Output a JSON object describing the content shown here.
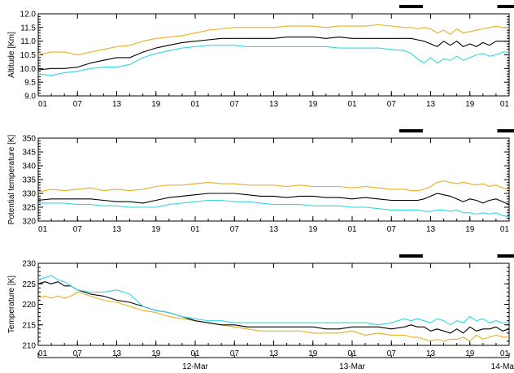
{
  "colors": {
    "upper": "#e8b020",
    "mid": "#000000",
    "lower": "#30d8e0",
    "axis": "#000000"
  },
  "x_tick_labels": [
    "01",
    "07",
    "13",
    "19",
    "01",
    "07",
    "13",
    "19",
    "01",
    "07",
    "13",
    "19",
    "01"
  ],
  "date_labels": [
    "12-Mar",
    "13-Mar",
    "14-Ma"
  ],
  "chart_data": [
    {
      "type": "line",
      "ylabel": "Altitude [Km]",
      "ylim": [
        9.0,
        12.0
      ],
      "yticks": [
        "9.0",
        "9.5",
        "10.0",
        "10.5",
        "11.0",
        "11.5",
        "12.0"
      ],
      "xlim": [
        0,
        72
      ],
      "bars": [
        [
          18.4,
          19.6
        ],
        [
          23.4,
          24.6
        ]
      ],
      "series": [
        {
          "color": "upper",
          "x": [
            0,
            2,
            4,
            6,
            8,
            10,
            12,
            14,
            16,
            18,
            20,
            22,
            24,
            26,
            28,
            30,
            32,
            34,
            36,
            38,
            40,
            42,
            44,
            46,
            48,
            50,
            52,
            54,
            56,
            57,
            58,
            59,
            60,
            61,
            62,
            63,
            64,
            65,
            66,
            67,
            68,
            69,
            70,
            71,
            72
          ],
          "y": [
            10.5,
            10.6,
            10.6,
            10.5,
            10.6,
            10.7,
            10.8,
            10.85,
            11.0,
            11.1,
            11.15,
            11.2,
            11.3,
            11.4,
            11.45,
            11.5,
            11.5,
            11.5,
            11.5,
            11.55,
            11.55,
            11.55,
            11.5,
            11.55,
            11.55,
            11.55,
            11.6,
            11.55,
            11.5,
            11.5,
            11.45,
            11.5,
            11.45,
            11.3,
            11.4,
            11.25,
            11.45,
            11.3,
            11.35,
            11.4,
            11.45,
            11.5,
            11.55,
            11.5,
            11.5
          ]
        },
        {
          "color": "mid",
          "x": [
            0,
            2,
            4,
            6,
            8,
            10,
            12,
            14,
            16,
            18,
            20,
            22,
            24,
            26,
            28,
            30,
            32,
            34,
            36,
            38,
            40,
            42,
            44,
            46,
            48,
            50,
            52,
            54,
            56,
            57,
            58,
            59,
            60,
            61,
            62,
            63,
            64,
            65,
            66,
            67,
            68,
            69,
            70,
            71,
            72
          ],
          "y": [
            9.95,
            10.0,
            10.0,
            10.05,
            10.2,
            10.3,
            10.4,
            10.4,
            10.6,
            10.75,
            10.85,
            10.95,
            11.0,
            11.05,
            11.1,
            11.1,
            11.1,
            11.1,
            11.1,
            11.15,
            11.15,
            11.15,
            11.1,
            11.15,
            11.1,
            11.1,
            11.1,
            11.1,
            11.1,
            11.1,
            11.05,
            11.0,
            10.9,
            10.8,
            11.0,
            10.85,
            11.0,
            10.8,
            10.9,
            10.8,
            10.95,
            10.85,
            11.0,
            11.0,
            11.0
          ]
        },
        {
          "color": "lower",
          "x": [
            0,
            2,
            4,
            6,
            8,
            10,
            12,
            14,
            16,
            18,
            20,
            22,
            24,
            26,
            28,
            30,
            32,
            34,
            36,
            38,
            40,
            42,
            44,
            46,
            48,
            50,
            52,
            54,
            56,
            57,
            58,
            59,
            60,
            61,
            62,
            63,
            64,
            65,
            66,
            67,
            68,
            69,
            70,
            71,
            72
          ],
          "y": [
            9.8,
            9.75,
            9.85,
            9.9,
            10.0,
            10.05,
            10.05,
            10.15,
            10.4,
            10.55,
            10.65,
            10.75,
            10.8,
            10.85,
            10.85,
            10.85,
            10.8,
            10.8,
            10.8,
            10.8,
            10.8,
            10.8,
            10.8,
            10.75,
            10.75,
            10.75,
            10.75,
            10.7,
            10.65,
            10.55,
            10.35,
            10.2,
            10.4,
            10.2,
            10.35,
            10.3,
            10.45,
            10.3,
            10.4,
            10.5,
            10.55,
            10.45,
            10.5,
            10.6,
            10.6
          ]
        }
      ]
    },
    {
      "type": "line",
      "ylabel": "Potential temperature [K]",
      "ylim": [
        320,
        350
      ],
      "yticks": [
        "320",
        "325",
        "330",
        "335",
        "340",
        "345",
        "350"
      ],
      "xlim": [
        0,
        72
      ],
      "bars": [
        [
          18.4,
          19.6
        ],
        [
          23.4,
          24.6
        ]
      ],
      "series": [
        {
          "color": "upper",
          "x": [
            0,
            2,
            4,
            6,
            8,
            10,
            12,
            14,
            16,
            18,
            20,
            22,
            24,
            26,
            28,
            30,
            32,
            34,
            36,
            38,
            40,
            42,
            44,
            46,
            48,
            50,
            52,
            54,
            56,
            57,
            58,
            59,
            60,
            61,
            62,
            63,
            64,
            65,
            66,
            67,
            68,
            69,
            70,
            71,
            72
          ],
          "y": [
            330.5,
            331.5,
            331.0,
            331.5,
            332.0,
            331.0,
            331.5,
            331.0,
            331.5,
            332.5,
            333.0,
            333.0,
            333.5,
            334.0,
            333.5,
            333.5,
            333.0,
            333.0,
            333.0,
            332.5,
            333.0,
            332.5,
            332.5,
            332.5,
            332.0,
            332.5,
            332.0,
            331.5,
            331.5,
            331.0,
            331.0,
            331.5,
            332.5,
            334.0,
            334.5,
            334.0,
            333.5,
            334.0,
            333.5,
            333.0,
            333.5,
            332.5,
            333.0,
            332.0,
            331.5
          ]
        },
        {
          "color": "mid",
          "x": [
            0,
            2,
            4,
            6,
            8,
            10,
            12,
            14,
            16,
            18,
            20,
            22,
            24,
            26,
            28,
            30,
            32,
            34,
            36,
            38,
            40,
            42,
            44,
            46,
            48,
            50,
            52,
            54,
            56,
            57,
            58,
            59,
            60,
            61,
            62,
            63,
            64,
            65,
            66,
            67,
            68,
            69,
            70,
            71,
            72
          ],
          "y": [
            327.5,
            328.0,
            328.0,
            328.0,
            328.0,
            327.5,
            327.0,
            327.0,
            326.5,
            327.5,
            328.5,
            329.0,
            329.5,
            330.0,
            330.0,
            330.0,
            329.5,
            329.0,
            329.0,
            328.5,
            329.0,
            329.0,
            328.5,
            328.5,
            328.0,
            328.5,
            328.0,
            327.5,
            327.5,
            327.5,
            327.5,
            328.0,
            329.0,
            330.0,
            329.5,
            329.0,
            328.0,
            327.0,
            328.0,
            327.5,
            326.5,
            327.5,
            328.0,
            327.0,
            326.0
          ]
        },
        {
          "color": "lower",
          "x": [
            0,
            2,
            4,
            6,
            8,
            10,
            12,
            14,
            16,
            18,
            20,
            22,
            24,
            26,
            28,
            30,
            32,
            34,
            36,
            38,
            40,
            42,
            44,
            46,
            48,
            50,
            52,
            54,
            56,
            57,
            58,
            59,
            60,
            61,
            62,
            63,
            64,
            65,
            66,
            67,
            68,
            69,
            70,
            71,
            72
          ],
          "y": [
            326.5,
            326.5,
            326.5,
            326.0,
            326.0,
            325.5,
            325.5,
            325.0,
            325.0,
            325.0,
            326.0,
            326.5,
            327.0,
            327.5,
            327.5,
            327.0,
            327.0,
            326.5,
            326.0,
            326.0,
            326.0,
            325.5,
            325.5,
            325.5,
            325.0,
            325.0,
            324.5,
            324.0,
            324.0,
            324.0,
            324.0,
            323.5,
            323.5,
            324.0,
            324.0,
            323.5,
            324.0,
            323.0,
            323.0,
            322.5,
            323.0,
            322.5,
            323.0,
            322.0,
            321.5
          ]
        }
      ]
    },
    {
      "type": "line",
      "ylabel": "Temperature [K]",
      "ylim": [
        210,
        230
      ],
      "yticks": [
        "210",
        "215",
        "220",
        "225",
        "230"
      ],
      "xlim": [
        0,
        72
      ],
      "bars": [
        [
          18.4,
          19.6
        ],
        [
          23.4,
          24.6
        ]
      ],
      "series": [
        {
          "color": "upper",
          "x": [
            0,
            1,
            2,
            3,
            4,
            5,
            6,
            8,
            10,
            12,
            14,
            16,
            18,
            20,
            22,
            24,
            26,
            28,
            30,
            32,
            34,
            36,
            38,
            40,
            42,
            44,
            46,
            48,
            50,
            52,
            54,
            56,
            57,
            58,
            59,
            60,
            61,
            62,
            63,
            64,
            65,
            66,
            67,
            68,
            69,
            70,
            71,
            72
          ],
          "y": [
            221.5,
            222.0,
            221.5,
            222.0,
            221.5,
            222.0,
            223.0,
            222.0,
            221.0,
            220.5,
            219.5,
            218.5,
            218.0,
            217.0,
            216.5,
            216.0,
            215.5,
            215.0,
            214.5,
            214.0,
            213.5,
            213.5,
            213.5,
            213.5,
            213.0,
            213.0,
            213.0,
            213.5,
            212.5,
            213.0,
            212.5,
            212.5,
            212.0,
            212.0,
            211.5,
            211.0,
            211.5,
            211.0,
            211.5,
            211.5,
            212.0,
            211.0,
            212.5,
            211.5,
            212.0,
            212.5,
            212.0,
            212.0
          ]
        },
        {
          "color": "mid",
          "x": [
            0,
            1,
            2,
            3,
            4,
            5,
            6,
            8,
            10,
            12,
            14,
            16,
            18,
            20,
            22,
            24,
            26,
            28,
            30,
            32,
            34,
            36,
            38,
            40,
            42,
            44,
            46,
            48,
            50,
            52,
            54,
            56,
            57,
            58,
            59,
            60,
            61,
            62,
            63,
            64,
            65,
            66,
            67,
            68,
            69,
            70,
            71,
            72
          ],
          "y": [
            225.0,
            225.5,
            225.0,
            225.5,
            224.5,
            224.5,
            223.5,
            222.5,
            222.0,
            221.0,
            220.5,
            219.5,
            218.5,
            218.0,
            217.0,
            216.0,
            215.5,
            215.0,
            215.0,
            214.5,
            214.5,
            214.5,
            214.5,
            214.5,
            214.5,
            214.0,
            214.0,
            214.5,
            214.5,
            214.5,
            214.0,
            214.5,
            215.0,
            214.5,
            214.5,
            213.5,
            214.0,
            213.5,
            213.0,
            214.0,
            213.0,
            214.5,
            213.5,
            214.0,
            214.0,
            214.5,
            213.5,
            214.0
          ]
        },
        {
          "color": "lower",
          "x": [
            0,
            1,
            2,
            3,
            4,
            5,
            6,
            8,
            10,
            12,
            14,
            16,
            18,
            20,
            22,
            24,
            26,
            28,
            30,
            32,
            34,
            36,
            38,
            40,
            42,
            44,
            46,
            48,
            50,
            52,
            54,
            56,
            57,
            58,
            59,
            60,
            61,
            62,
            63,
            64,
            65,
            66,
            67,
            68,
            69,
            70,
            71,
            72
          ],
          "y": [
            226.0,
            226.5,
            227.0,
            226.0,
            225.5,
            224.5,
            223.5,
            223.0,
            223.0,
            223.5,
            222.5,
            219.5,
            218.5,
            218.0,
            217.0,
            216.5,
            216.0,
            216.0,
            215.5,
            215.5,
            215.5,
            215.5,
            215.5,
            215.5,
            215.5,
            215.5,
            215.5,
            215.5,
            215.5,
            215.0,
            215.5,
            216.5,
            216.0,
            216.5,
            216.0,
            215.5,
            216.5,
            216.0,
            215.0,
            216.0,
            215.5,
            217.0,
            216.0,
            216.5,
            215.5,
            216.0,
            215.5,
            215.5
          ]
        }
      ]
    }
  ]
}
